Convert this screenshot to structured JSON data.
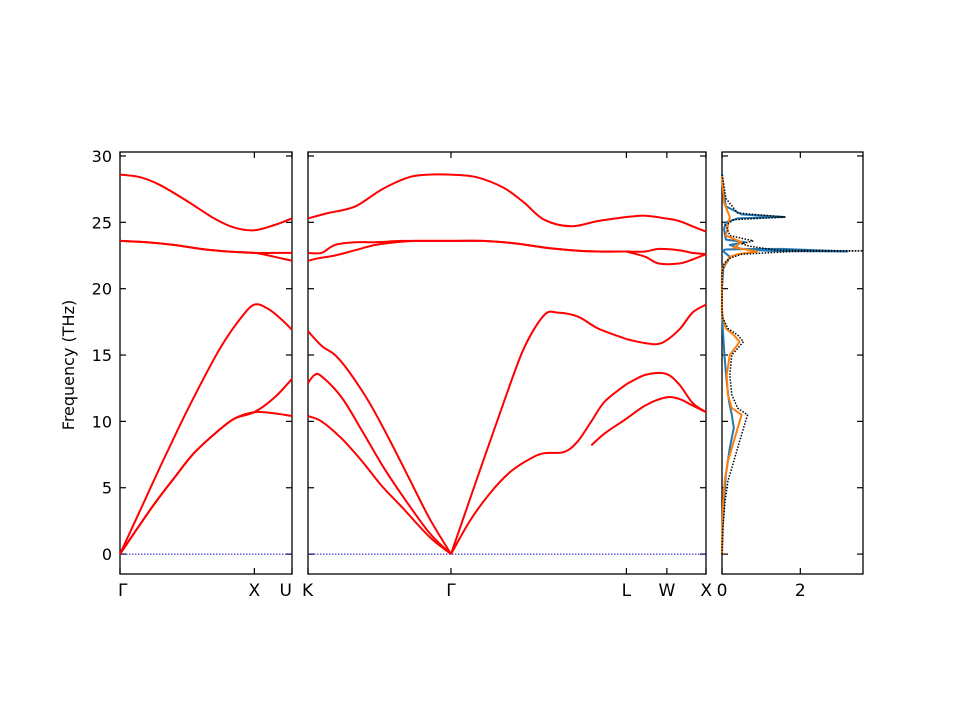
{
  "chart_data": [
    {
      "type": "line",
      "panel": "band-structure-left",
      "x_ticks": [
        "Γ",
        "X",
        "U"
      ],
      "ylabel": "Frequency (THz)",
      "ylim": [
        -1.5,
        30.3
      ],
      "y_ticks": [
        0,
        5,
        10,
        15,
        20,
        25,
        30
      ],
      "zero_line": true,
      "line_color": "#ff0000",
      "series": [
        {
          "x": [
            0,
            0.1,
            0.25,
            0.4,
            0.55,
            0.72,
            0.85,
            1.0,
            1.15,
            1.28
          ],
          "y": [
            0,
            1.5,
            3.7,
            5.7,
            7.6,
            9.2,
            10.2,
            10.7,
            10.6,
            10.4
          ]
        },
        {
          "x": [
            0,
            0.1,
            0.25,
            0.4,
            0.55,
            0.72,
            0.85,
            1.0,
            1.15,
            1.28
          ],
          "y": [
            0,
            1.5,
            3.7,
            5.7,
            7.6,
            9.2,
            10.2,
            10.7,
            11.8,
            13.2
          ]
        },
        {
          "x": [
            0,
            0.15,
            0.3,
            0.45,
            0.6,
            0.75,
            0.9,
            1.0,
            1.1,
            1.2,
            1.28
          ],
          "y": [
            0,
            3.3,
            6.6,
            9.8,
            12.8,
            15.6,
            17.8,
            18.8,
            18.5,
            17.7,
            16.9
          ]
        },
        {
          "x": [
            0,
            0.2,
            0.4,
            0.6,
            0.8,
            1.0,
            1.15,
            1.28
          ],
          "y": [
            23.6,
            23.5,
            23.3,
            23.0,
            22.8,
            22.7,
            22.4,
            22.1
          ]
        },
        {
          "x": [
            0,
            0.2,
            0.4,
            0.6,
            0.8,
            1.0,
            1.15,
            1.28
          ],
          "y": [
            23.6,
            23.5,
            23.3,
            23.0,
            22.8,
            22.7,
            22.7,
            22.7
          ]
        },
        {
          "x": [
            0,
            0.15,
            0.3,
            0.5,
            0.7,
            0.85,
            1.0,
            1.15,
            1.28
          ],
          "y": [
            28.6,
            28.4,
            27.8,
            26.6,
            25.3,
            24.6,
            24.4,
            24.8,
            25.3
          ]
        }
      ]
    },
    {
      "type": "line",
      "panel": "band-structure-right",
      "x_ticks": [
        "K",
        "Γ",
        "L",
        "W",
        "X"
      ],
      "ylim": [
        -1.5,
        30.3
      ],
      "zero_line": true,
      "line_color": "#ff0000",
      "series": [
        {
          "x": [
            0,
            0.1,
            0.25,
            0.4,
            0.55,
            0.7,
            0.9,
            1.06
          ],
          "y": [
            10.4,
            10.0,
            8.7,
            7.0,
            5.1,
            3.5,
            1.3,
            0
          ]
        },
        {
          "x": [
            0,
            0.05,
            0.1,
            0.25,
            0.4,
            0.55,
            0.7,
            0.9,
            1.06
          ],
          "y": [
            12.9,
            13.5,
            13.4,
            11.8,
            9.3,
            6.7,
            4.4,
            1.6,
            0
          ]
        },
        {
          "x": [
            0,
            0.1,
            0.2,
            0.3,
            0.45,
            0.6,
            0.75,
            0.9,
            1.06
          ],
          "y": [
            16.8,
            15.7,
            15.0,
            13.8,
            11.5,
            8.7,
            5.7,
            2.7,
            0
          ]
        },
        {
          "x": [
            0,
            0.08,
            0.2,
            0.35,
            0.5,
            0.65,
            0.8,
            0.95,
            1.06
          ],
          "y": [
            22.1,
            22.3,
            22.5,
            22.9,
            23.3,
            23.5,
            23.6,
            23.6,
            23.6
          ]
        },
        {
          "x": [
            0,
            0.1,
            0.2,
            0.35,
            0.5,
            0.7,
            0.9,
            1.06
          ],
          "y": [
            22.7,
            22.7,
            23.3,
            23.5,
            23.5,
            23.6,
            23.6,
            23.6
          ]
        },
        {
          "x": [
            0,
            0.15,
            0.35,
            0.55,
            0.75,
            0.9,
            1.06
          ],
          "y": [
            25.3,
            25.7,
            26.2,
            27.5,
            28.4,
            28.6,
            28.6
          ]
        },
        {
          "x": [
            1.06,
            1.2,
            1.35,
            1.5,
            1.65,
            1.75,
            1.9,
            2.0,
            2.1,
            2.2,
            2.36
          ],
          "y": [
            0,
            2.5,
            4.6,
            6.2,
            7.2,
            7.6,
            7.7,
            8.5,
            10.0,
            11.5,
            12.8
          ]
        },
        {
          "x": [
            1.06,
            1.25,
            1.45,
            1.6,
            1.75,
            1.85,
            2.0,
            2.15,
            2.36
          ],
          "y": [
            0,
            5.6,
            11.4,
            15.5,
            18.0,
            18.2,
            17.9,
            17.0,
            16.2
          ]
        },
        {
          "x": [
            1.06,
            1.3,
            1.55,
            1.75,
            1.95,
            2.15,
            2.36
          ],
          "y": [
            23.6,
            23.6,
            23.4,
            23.1,
            22.9,
            22.8,
            22.8
          ]
        },
        {
          "x": [
            1.06,
            1.3,
            1.55,
            1.75,
            1.95,
            2.15,
            2.36
          ],
          "y": [
            23.6,
            23.6,
            23.4,
            23.1,
            22.9,
            22.8,
            22.8
          ]
        },
        {
          "x": [
            1.06,
            1.25,
            1.45,
            1.6,
            1.75,
            1.95,
            2.15,
            2.36
          ],
          "y": [
            28.6,
            28.4,
            27.6,
            26.5,
            25.2,
            24.7,
            25.1,
            25.4
          ]
        },
        {
          "x": [
            2.36,
            2.5,
            2.65,
            2.75,
            2.85,
            2.95
          ],
          "y": [
            12.8,
            13.5,
            13.6,
            12.8,
            11.4,
            10.7
          ]
        },
        {
          "x": [
            2.36,
            2.5,
            2.62,
            2.75,
            2.85,
            2.95
          ],
          "y": [
            16.2,
            15.9,
            15.9,
            16.9,
            18.2,
            18.8
          ]
        },
        {
          "x": [
            2.36,
            2.5,
            2.6,
            2.75,
            2.85,
            2.95
          ],
          "y": [
            22.8,
            22.8,
            23.0,
            22.9,
            22.7,
            22.6
          ]
        },
        {
          "x": [
            2.36,
            2.5,
            2.6,
            2.75,
            2.85,
            2.95
          ],
          "y": [
            22.8,
            22.4,
            21.9,
            21.9,
            22.2,
            22.6
          ]
        },
        {
          "x": [
            2.36,
            2.5,
            2.65,
            2.75,
            2.85,
            2.95
          ],
          "y": [
            25.4,
            25.5,
            25.3,
            25.1,
            24.7,
            24.3
          ]
        },
        {
          "x": [
            2.1,
            2.2,
            2.36,
            2.5,
            2.65,
            2.75,
            2.85,
            2.95
          ],
          "y": [
            8.2,
            9.1,
            10.2,
            11.2,
            11.8,
            11.7,
            11.2,
            10.7
          ]
        }
      ]
    },
    {
      "type": "line",
      "panel": "density-of-states",
      "xlim": [
        0,
        3.6
      ],
      "x_ticks": [
        "0",
        "2"
      ],
      "x_tick_values": [
        0,
        2
      ],
      "ylim": [
        -1.5,
        30.3
      ],
      "series": [
        {
          "color": "#1f77b4",
          "x": [
            0,
            0.02,
            0.05,
            0.1,
            0.2,
            0.3,
            0.25,
            0.18,
            0.12,
            0.06,
            0.02,
            0,
            0,
            0.03,
            0.1,
            0.15,
            0.2,
            0.12,
            0.06,
            0.02,
            0.1,
            0.5,
            1.5,
            3.2,
            1.2,
            0.5,
            0.2,
            0.6,
            0.1,
            0.05,
            0.1,
            0.4,
            1.6,
            0.5,
            0.1,
            0.03,
            0
          ],
          "y": [
            0,
            2,
            4,
            6,
            8,
            9.5,
            10.5,
            11.5,
            13,
            15,
            17,
            18.5,
            20,
            21.5,
            21.9,
            22.1,
            22.4,
            22.6,
            22.75,
            22.9,
            22.95,
            22.98,
            23.0,
            22.8,
            22.85,
            23.0,
            23.3,
            23.5,
            23.7,
            24.5,
            25.0,
            25.3,
            25.4,
            25.6,
            26.2,
            27.5,
            28.7
          ]
        },
        {
          "color": "#ff7f0e",
          "x": [
            0,
            0.01,
            0.03,
            0.07,
            0.15,
            0.3,
            0.5,
            0.25,
            0.15,
            0.12,
            0.2,
            0.45,
            0.3,
            0.1,
            0.02,
            0,
            0,
            0.2,
            0.4,
            0.9,
            0.3,
            0.5,
            0.1,
            0.2,
            0.05,
            0
          ],
          "y": [
            0,
            2,
            4,
            5.5,
            7,
            8.5,
            10.5,
            11,
            12,
            13.5,
            15,
            16,
            16.5,
            17,
            17.8,
            18.3,
            21.5,
            22.4,
            22.6,
            22.8,
            23.1,
            23.5,
            24.0,
            25.4,
            26.5,
            28.5
          ]
        },
        {
          "color": "#000000",
          "dotted": true,
          "x": [
            0,
            0.02,
            0.08,
            0.15,
            0.3,
            0.45,
            0.65,
            0.4,
            0.25,
            0.2,
            0.25,
            0.55,
            0.4,
            0.15,
            0.02,
            0,
            0,
            0.05,
            0.2,
            0.5,
            1.8,
            3.6,
            1.4,
            0.7,
            0.5,
            0.8,
            0.2,
            0.1,
            0.3,
            1.6,
            0.4,
            0.1,
            0
          ],
          "y": [
            0,
            2,
            4,
            5.5,
            7,
            8.5,
            10.5,
            11,
            12,
            13.5,
            15,
            16,
            16.5,
            17,
            17.8,
            18.3,
            21.2,
            21.9,
            22.3,
            22.6,
            22.8,
            22.85,
            22.9,
            23.2,
            23.4,
            23.6,
            24.0,
            24.8,
            25.2,
            25.4,
            25.7,
            26.8,
            28.7
          ]
        }
      ]
    }
  ]
}
